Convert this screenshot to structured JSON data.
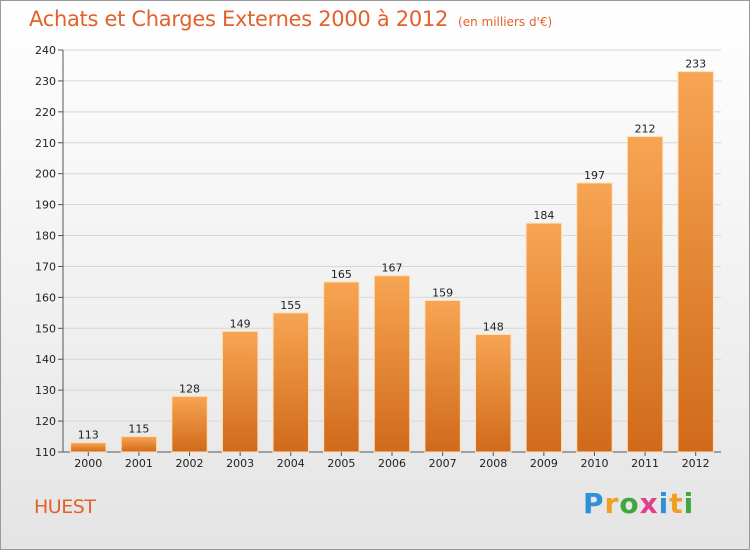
{
  "header": {
    "title": "Achats et Charges Externes 2000 à 2012",
    "subtitle": "(en milliers d'€)"
  },
  "footer": {
    "commune": "HUEST",
    "logo_letters": [
      {
        "char": "P",
        "color": "#2f8fd8"
      },
      {
        "char": "r",
        "color": "#f0a020"
      },
      {
        "char": "o",
        "color": "#3ea83e"
      },
      {
        "char": "x",
        "color": "#e33d8e"
      },
      {
        "char": "i",
        "color": "#2f8fd8"
      },
      {
        "char": "t",
        "color": "#f0a020"
      },
      {
        "char": "i",
        "color": "#3ea83e"
      }
    ]
  },
  "colors": {
    "accent": "#e3612a",
    "bar_top": "#f7a553",
    "bar_bottom": "#d06a1a",
    "bar_edge": "#ffe0b8"
  },
  "chart_data": {
    "type": "bar",
    "title": "Achats et Charges Externes 2000 à 2012",
    "subtitle": "(en milliers d'€)",
    "categories": [
      "2000",
      "2001",
      "2002",
      "2003",
      "2004",
      "2005",
      "2006",
      "2007",
      "2008",
      "2009",
      "2010",
      "2011",
      "2012"
    ],
    "values": [
      113,
      115,
      128,
      149,
      155,
      165,
      167,
      159,
      148,
      184,
      197,
      212,
      233
    ],
    "ylim": [
      110,
      240
    ],
    "yticks": [
      110,
      120,
      130,
      140,
      150,
      160,
      170,
      180,
      190,
      200,
      210,
      220,
      230,
      240
    ],
    "xlabel": "",
    "ylabel": "",
    "grid": true,
    "data_labels": true
  }
}
